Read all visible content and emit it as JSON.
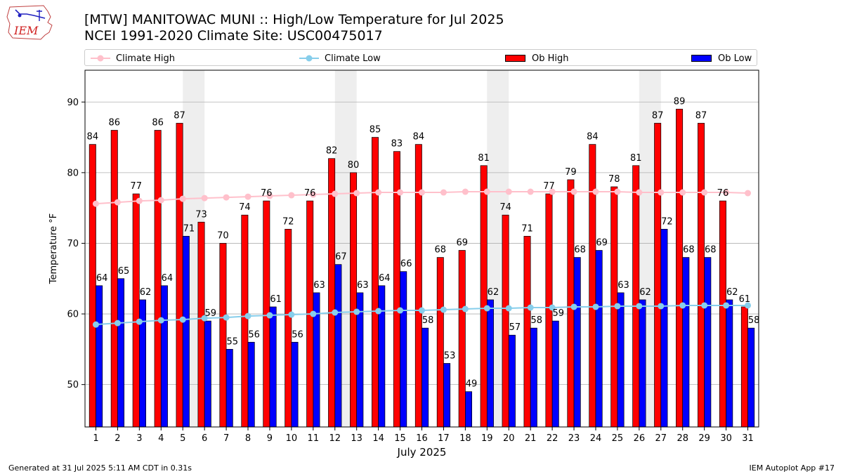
{
  "header": {
    "logo_text": "IEM",
    "title_line1": "[MTW] MANITOWAC MUNI :: High/Low Temperature for Jul 2025",
    "title_line2": "NCEI 1991-2020 Climate Site: USC00475017"
  },
  "footer": {
    "generated": "Generated at 31 Jul 2025 5:11 AM CDT in 0.31s",
    "app": "IEM Autoplot App #17"
  },
  "colors": {
    "ob_high": "#ff0000",
    "ob_low": "#0000ff",
    "climate_high": "#ffc0cb",
    "climate_low": "#87ceeb",
    "weekend_shade": "#eeeeee",
    "grid": "#b0b0b0"
  },
  "chart_data": {
    "type": "bar",
    "title": "[MTW] MANITOWAC MUNI :: High/Low Temperature for Jul 2025",
    "subtitle": "NCEI 1991-2020 Climate Site: USC00475017",
    "xlabel": "July 2025",
    "ylabel": "Temperature °F",
    "ylim": [
      44,
      94.5
    ],
    "yticks": [
      50,
      60,
      70,
      80,
      90
    ],
    "grid": "horizontal",
    "legend_position": "top",
    "categories": [
      "1",
      "2",
      "3",
      "4",
      "5",
      "6",
      "7",
      "8",
      "9",
      "10",
      "11",
      "12",
      "13",
      "14",
      "15",
      "16",
      "17",
      "18",
      "19",
      "20",
      "21",
      "22",
      "23",
      "24",
      "25",
      "26",
      "27",
      "28",
      "29",
      "30",
      "31"
    ],
    "shaded_days": [
      [
        5,
        6
      ],
      [
        12,
        13
      ],
      [
        19,
        20
      ],
      [
        26,
        27
      ]
    ],
    "series": [
      {
        "name": "Ob High",
        "kind": "bar",
        "values": [
          84,
          86,
          77,
          86,
          87,
          73,
          70,
          74,
          76,
          72,
          76,
          82,
          80,
          85,
          83,
          84,
          68,
          69,
          81,
          74,
          71,
          77,
          79,
          84,
          78,
          81,
          87,
          89,
          87,
          76,
          61
        ]
      },
      {
        "name": "Ob Low",
        "kind": "bar",
        "values": [
          64,
          65,
          62,
          64,
          71,
          59,
          55,
          56,
          61,
          56,
          63,
          67,
          63,
          64,
          66,
          58,
          53,
          49,
          62,
          57,
          58,
          59,
          68,
          69,
          63,
          62,
          72,
          68,
          68,
          62,
          58
        ]
      },
      {
        "name": "Climate High",
        "kind": "line",
        "values": [
          75.6,
          75.8,
          76.0,
          76.1,
          76.3,
          76.4,
          76.5,
          76.6,
          76.7,
          76.8,
          76.9,
          77.0,
          77.1,
          77.2,
          77.2,
          77.2,
          77.2,
          77.3,
          77.3,
          77.3,
          77.3,
          77.3,
          77.3,
          77.3,
          77.3,
          77.2,
          77.2,
          77.2,
          77.2,
          77.2,
          77.1
        ]
      },
      {
        "name": "Climate Low",
        "kind": "line",
        "values": [
          58.5,
          58.7,
          58.9,
          59.1,
          59.2,
          59.4,
          59.5,
          59.7,
          59.8,
          59.9,
          60.0,
          60.2,
          60.3,
          60.4,
          60.5,
          60.5,
          60.6,
          60.7,
          60.8,
          60.8,
          60.9,
          60.9,
          61.0,
          61.0,
          61.1,
          61.1,
          61.1,
          61.2,
          61.2,
          61.2,
          61.2
        ]
      }
    ]
  }
}
